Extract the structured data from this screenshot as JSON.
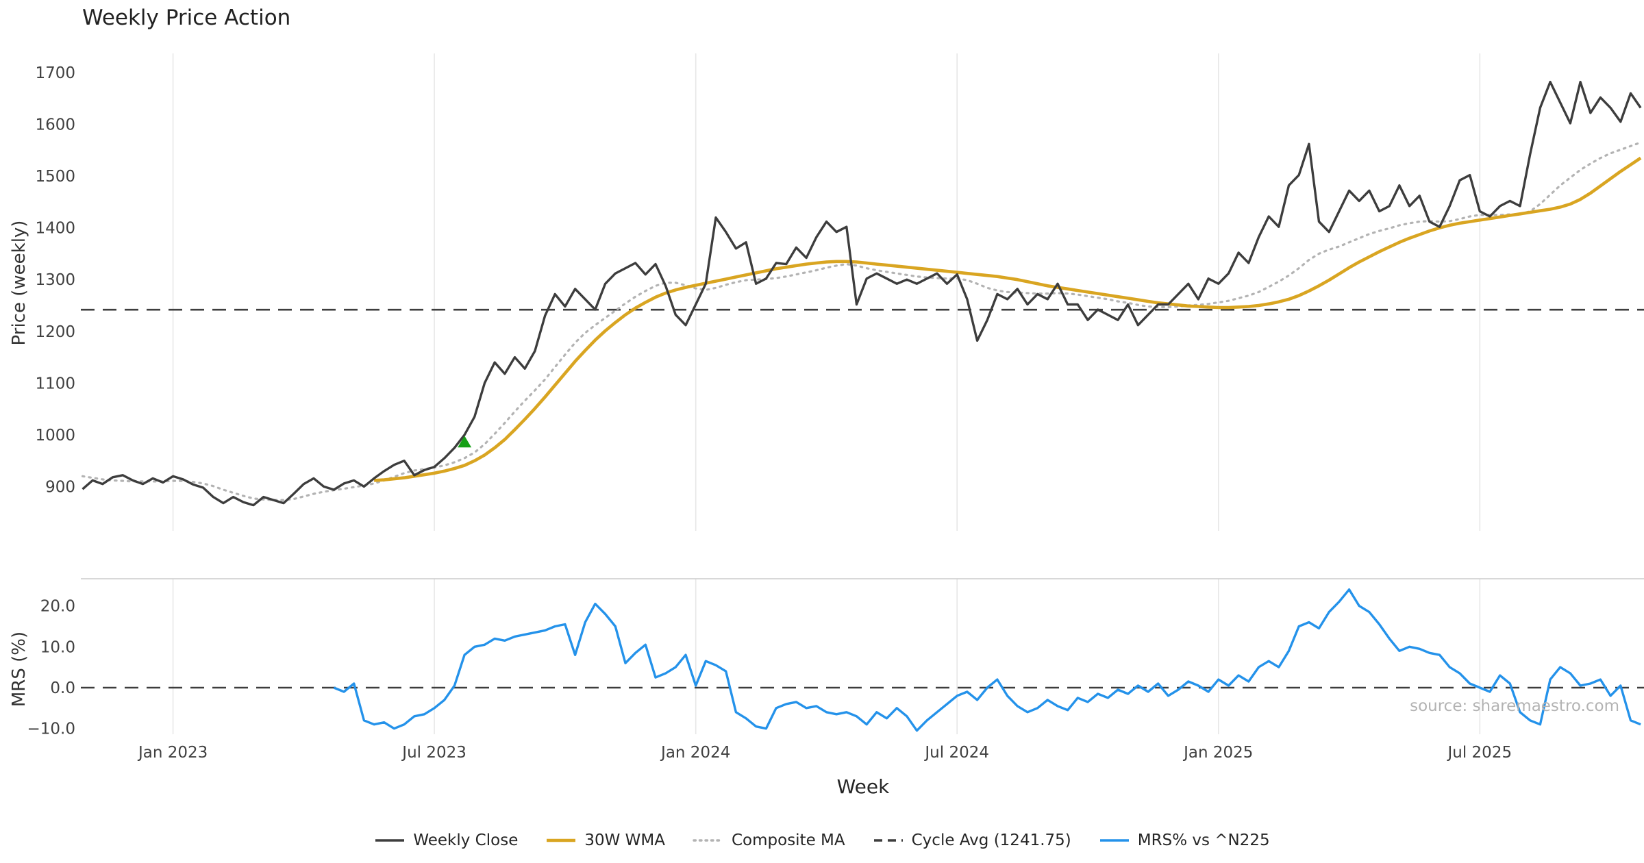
{
  "title": "Weekly Price Action",
  "source_text": "source: sharemaestro.com",
  "axes": {
    "xlabel": "Week",
    "price_ylabel": "Price (weekly)",
    "mrs_ylabel": "MRS (%)"
  },
  "legend": {
    "items": [
      {
        "label": "Weekly Close",
        "color": "#3d3d3d",
        "style": "solid"
      },
      {
        "label": "30W WMA",
        "color": "#d9a521",
        "style": "solid"
      },
      {
        "label": "Composite MA",
        "color": "#b3b3b3",
        "style": "dotted"
      },
      {
        "label": "Cycle Avg (1241.75)",
        "color": "#3d3d3d",
        "style": "dashed"
      },
      {
        "label": "MRS% vs ^N225",
        "color": "#2492ea",
        "style": "solid"
      }
    ]
  },
  "chart_data": [
    {
      "type": "line",
      "panel": "price",
      "title": "Weekly Price Action",
      "xlabel": "Week",
      "ylabel": "Price (weekly)",
      "ylim": [
        850,
        1730
      ],
      "grid": "vertical-only",
      "yticks": [
        900,
        1000,
        1100,
        1200,
        1300,
        1400,
        1500,
        1600,
        1700
      ],
      "x_unit": "week_index",
      "xlim": [
        0,
        155
      ],
      "xticks": [
        {
          "week": 9,
          "label": "Jan 2023"
        },
        {
          "week": 35,
          "label": "Jul 2023"
        },
        {
          "week": 61,
          "label": "Jan 2024"
        },
        {
          "week": 87,
          "label": "Jul 2024"
        },
        {
          "week": 113,
          "label": "Jan 2025"
        },
        {
          "week": 139,
          "label": "Jul 2025"
        }
      ],
      "reference_line": {
        "label": "Cycle Avg (1241.75)",
        "value": 1241.75,
        "style": "dashed",
        "color": "#3d3d3d"
      },
      "markers": [
        {
          "type": "triangle-up",
          "name": "buy-signal",
          "color": "#16a016",
          "week": 38,
          "value": 985
        }
      ],
      "series": [
        {
          "name": "Weekly Close",
          "color": "#3d3d3d",
          "style": "solid",
          "start_week": 0,
          "values": [
            895,
            912,
            905,
            918,
            922,
            912,
            905,
            916,
            908,
            920,
            914,
            904,
            898,
            880,
            868,
            880,
            870,
            864,
            880,
            874,
            868,
            886,
            905,
            916,
            900,
            894,
            906,
            912,
            900,
            916,
            930,
            942,
            950,
            922,
            932,
            938,
            955,
            975,
            1000,
            1035,
            1100,
            1140,
            1118,
            1150,
            1128,
            1162,
            1230,
            1272,
            1248,
            1282,
            1262,
            1242,
            1292,
            1312,
            1322,
            1332,
            1310,
            1330,
            1288,
            1232,
            1212,
            1252,
            1292,
            1420,
            1392,
            1360,
            1372,
            1292,
            1302,
            1332,
            1330,
            1362,
            1342,
            1382,
            1412,
            1392,
            1402,
            1252,
            1302,
            1312,
            1302,
            1292,
            1300,
            1292,
            1302,
            1312,
            1292,
            1310,
            1262,
            1182,
            1222,
            1272,
            1262,
            1282,
            1252,
            1272,
            1262,
            1292,
            1252,
            1252,
            1222,
            1242,
            1232,
            1222,
            1252,
            1212,
            1232,
            1252,
            1252,
            1272,
            1292,
            1262,
            1302,
            1292,
            1312,
            1352,
            1332,
            1382,
            1422,
            1402,
            1482,
            1502,
            1562,
            1412,
            1392,
            1432,
            1472,
            1452,
            1472,
            1432,
            1442,
            1482,
            1442,
            1462,
            1412,
            1402,
            1442,
            1492,
            1502,
            1432,
            1422,
            1442,
            1452,
            1442,
            1542,
            1632,
            1682,
            1642,
            1602,
            1682,
            1622,
            1652,
            1632,
            1605,
            1660,
            1632
          ]
        },
        {
          "name": "30W WMA",
          "color": "#d9a521",
          "style": "solid",
          "start_week": 29,
          "values": [
            912,
            913,
            915,
            917,
            920,
            923,
            926,
            930,
            935,
            941,
            950,
            961,
            975,
            991,
            1010,
            1030,
            1051,
            1073,
            1096,
            1119,
            1142,
            1163,
            1183,
            1201,
            1217,
            1232,
            1245,
            1256,
            1266,
            1274,
            1280,
            1285,
            1289,
            1293,
            1297,
            1301,
            1305,
            1309,
            1313,
            1317,
            1321,
            1324,
            1327,
            1330,
            1332,
            1334,
            1335,
            1335,
            1334,
            1332,
            1330,
            1328,
            1326,
            1324,
            1322,
            1320,
            1318,
            1316,
            1314,
            1312,
            1310,
            1308,
            1306,
            1303,
            1300,
            1296,
            1292,
            1288,
            1285,
            1282,
            1279,
            1276,
            1273,
            1270,
            1267,
            1264,
            1261,
            1258,
            1255,
            1253,
            1251,
            1249,
            1248,
            1247,
            1246,
            1246,
            1247,
            1248,
            1250,
            1253,
            1257,
            1262,
            1269,
            1278,
            1288,
            1299,
            1311,
            1323,
            1334,
            1344,
            1354,
            1363,
            1372,
            1380,
            1387,
            1394,
            1400,
            1405,
            1409,
            1412,
            1415,
            1418,
            1421,
            1424,
            1427,
            1430,
            1433,
            1436,
            1440,
            1446,
            1455,
            1467,
            1481,
            1495,
            1509,
            1522,
            1535
          ]
        },
        {
          "name": "Composite MA",
          "color": "#b3b3b3",
          "style": "dotted",
          "start_week": 0,
          "values": [
            920,
            917,
            914,
            912,
            911,
            910,
            910,
            910,
            910,
            911,
            911,
            909,
            906,
            901,
            894,
            888,
            882,
            877,
            875,
            874,
            874,
            876,
            881,
            886,
            890,
            893,
            896,
            899,
            902,
            906,
            912,
            919,
            926,
            931,
            934,
            937,
            941,
            947,
            955,
            966,
            982,
            1002,
            1023,
            1045,
            1066,
            1086,
            1107,
            1131,
            1155,
            1178,
            1197,
            1212,
            1226,
            1240,
            1254,
            1267,
            1278,
            1288,
            1294,
            1294,
            1289,
            1283,
            1280,
            1284,
            1290,
            1295,
            1299,
            1300,
            1301,
            1303,
            1306,
            1310,
            1314,
            1318,
            1323,
            1327,
            1330,
            1327,
            1322,
            1318,
            1315,
            1312,
            1309,
            1306,
            1304,
            1303,
            1302,
            1302,
            1299,
            1292,
            1284,
            1279,
            1276,
            1275,
            1274,
            1273,
            1273,
            1274,
            1273,
            1271,
            1268,
            1265,
            1262,
            1258,
            1255,
            1251,
            1248,
            1247,
            1247,
            1248,
            1250,
            1251,
            1253,
            1256,
            1259,
            1264,
            1269,
            1276,
            1286,
            1296,
            1308,
            1322,
            1338,
            1350,
            1358,
            1364,
            1372,
            1380,
            1388,
            1394,
            1399,
            1405,
            1409,
            1412,
            1413,
            1412,
            1413,
            1417,
            1422,
            1425,
            1425,
            1425,
            1426,
            1426,
            1432,
            1446,
            1464,
            1482,
            1497,
            1512,
            1524,
            1535,
            1544,
            1551,
            1558,
            1565
          ]
        }
      ]
    },
    {
      "type": "line",
      "panel": "mrs",
      "ylabel": "MRS (%)",
      "ylim": [
        -11.5,
        26.5
      ],
      "grid": "vertical-only",
      "yticks": [
        {
          "value": 20,
          "label": "20.0"
        },
        {
          "value": 10,
          "label": "10.0"
        },
        {
          "value": 0,
          "label": "0.0"
        },
        {
          "value": -10,
          "label": "−10.0"
        }
      ],
      "reference_line": {
        "label": "zero",
        "value": 0,
        "style": "dashed",
        "color": "#3d3d3d"
      },
      "series": [
        {
          "name": "MRS% vs ^N225",
          "color": "#2492ea",
          "style": "solid",
          "start_week": 25,
          "values": [
            0,
            -1,
            1,
            -8,
            -9,
            -8.5,
            -10,
            -9,
            -7,
            -6.5,
            -5,
            -3,
            0.5,
            8,
            10,
            10.5,
            12,
            11.5,
            12.5,
            13,
            13.5,
            14,
            15,
            15.5,
            8,
            16,
            20.5,
            18,
            15,
            6,
            8.5,
            10.5,
            2.5,
            3.5,
            5,
            8,
            0.5,
            6.5,
            5.5,
            4,
            -6,
            -7.5,
            -9.5,
            -10,
            -5,
            -4,
            -3.5,
            -5,
            -4.5,
            -6,
            -6.5,
            -6,
            -7,
            -9,
            -6,
            -7.5,
            -5,
            -7,
            -10.5,
            -8,
            -6,
            -4,
            -2,
            -1,
            -3,
            0,
            2,
            -2,
            -4.5,
            -6,
            -5,
            -3,
            -4.5,
            -5.5,
            -2.5,
            -3.5,
            -1.5,
            -2.5,
            -0.5,
            -1.5,
            0.5,
            -1,
            1,
            -2,
            -0.5,
            1.5,
            0.5,
            -1,
            2,
            0.5,
            3,
            1.5,
            5,
            6.5,
            5,
            9,
            15,
            16,
            14.5,
            18.5,
            21,
            24,
            20,
            18.5,
            15.5,
            12,
            9,
            10,
            9.5,
            8.5,
            8,
            5,
            3.5,
            1,
            0,
            -1,
            3,
            1,
            -6,
            -8,
            -9,
            2,
            5,
            3.5,
            0.5,
            1,
            2,
            -2,
            0.5,
            -8,
            -9
          ]
        }
      ]
    }
  ]
}
